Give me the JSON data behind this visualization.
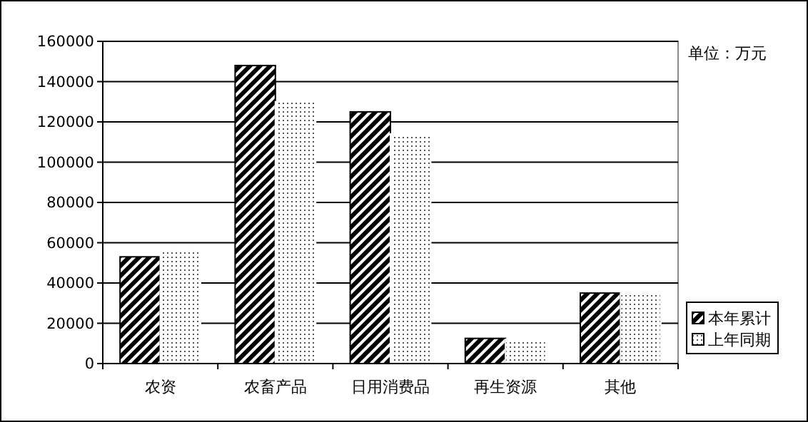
{
  "chart_data": {
    "type": "bar",
    "categories": [
      "农资",
      "农畜产品",
      "日用消费品",
      "再生资源",
      "其他"
    ],
    "series": [
      {
        "name": "本年累计",
        "color": "#000000",
        "values": [
          53000,
          148000,
          125000,
          12500,
          35000
        ]
      },
      {
        "name": "上年同期",
        "color": "#ffffff",
        "values": [
          57000,
          130000,
          114000,
          12000,
          35000
        ]
      }
    ],
    "ylim": [
      0,
      160000
    ],
    "yticks": [
      0,
      20000,
      40000,
      60000,
      80000,
      100000,
      120000,
      140000,
      160000
    ],
    "grid": "y",
    "legend": "right",
    "annotations": [
      "单位：万元"
    ]
  }
}
